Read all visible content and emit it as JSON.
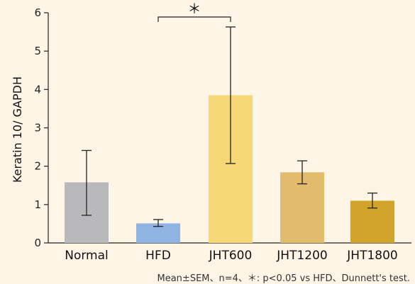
{
  "chart_data": {
    "type": "bar",
    "title": "",
    "xlabel": "",
    "ylabel": "Keratin 10/ GAPDH",
    "ylim": [
      0,
      6
    ],
    "yticks": [
      0,
      1,
      2,
      3,
      4,
      5,
      6
    ],
    "categories": [
      "Normal",
      "HFD",
      "JHT600",
      "JHT1200",
      "JHT1800"
    ],
    "values": [
      1.58,
      0.51,
      3.85,
      1.84,
      1.1
    ],
    "error_low": [
      0.72,
      0.43,
      2.07,
      1.54,
      0.91
    ],
    "error_high": [
      2.41,
      0.61,
      5.63,
      2.14,
      1.3
    ],
    "colors": [
      "#b9b9bc",
      "#8fb4e3",
      "#f7d878",
      "#e2bb6d",
      "#d2a42a"
    ],
    "grid": false,
    "annotations": [
      {
        "from": "HFD",
        "to": "JHT600",
        "label": "＊"
      }
    ],
    "footnote": "Mean±SEM、n=4、＊: p<0.05 vs HFD、Dunnett's test."
  }
}
